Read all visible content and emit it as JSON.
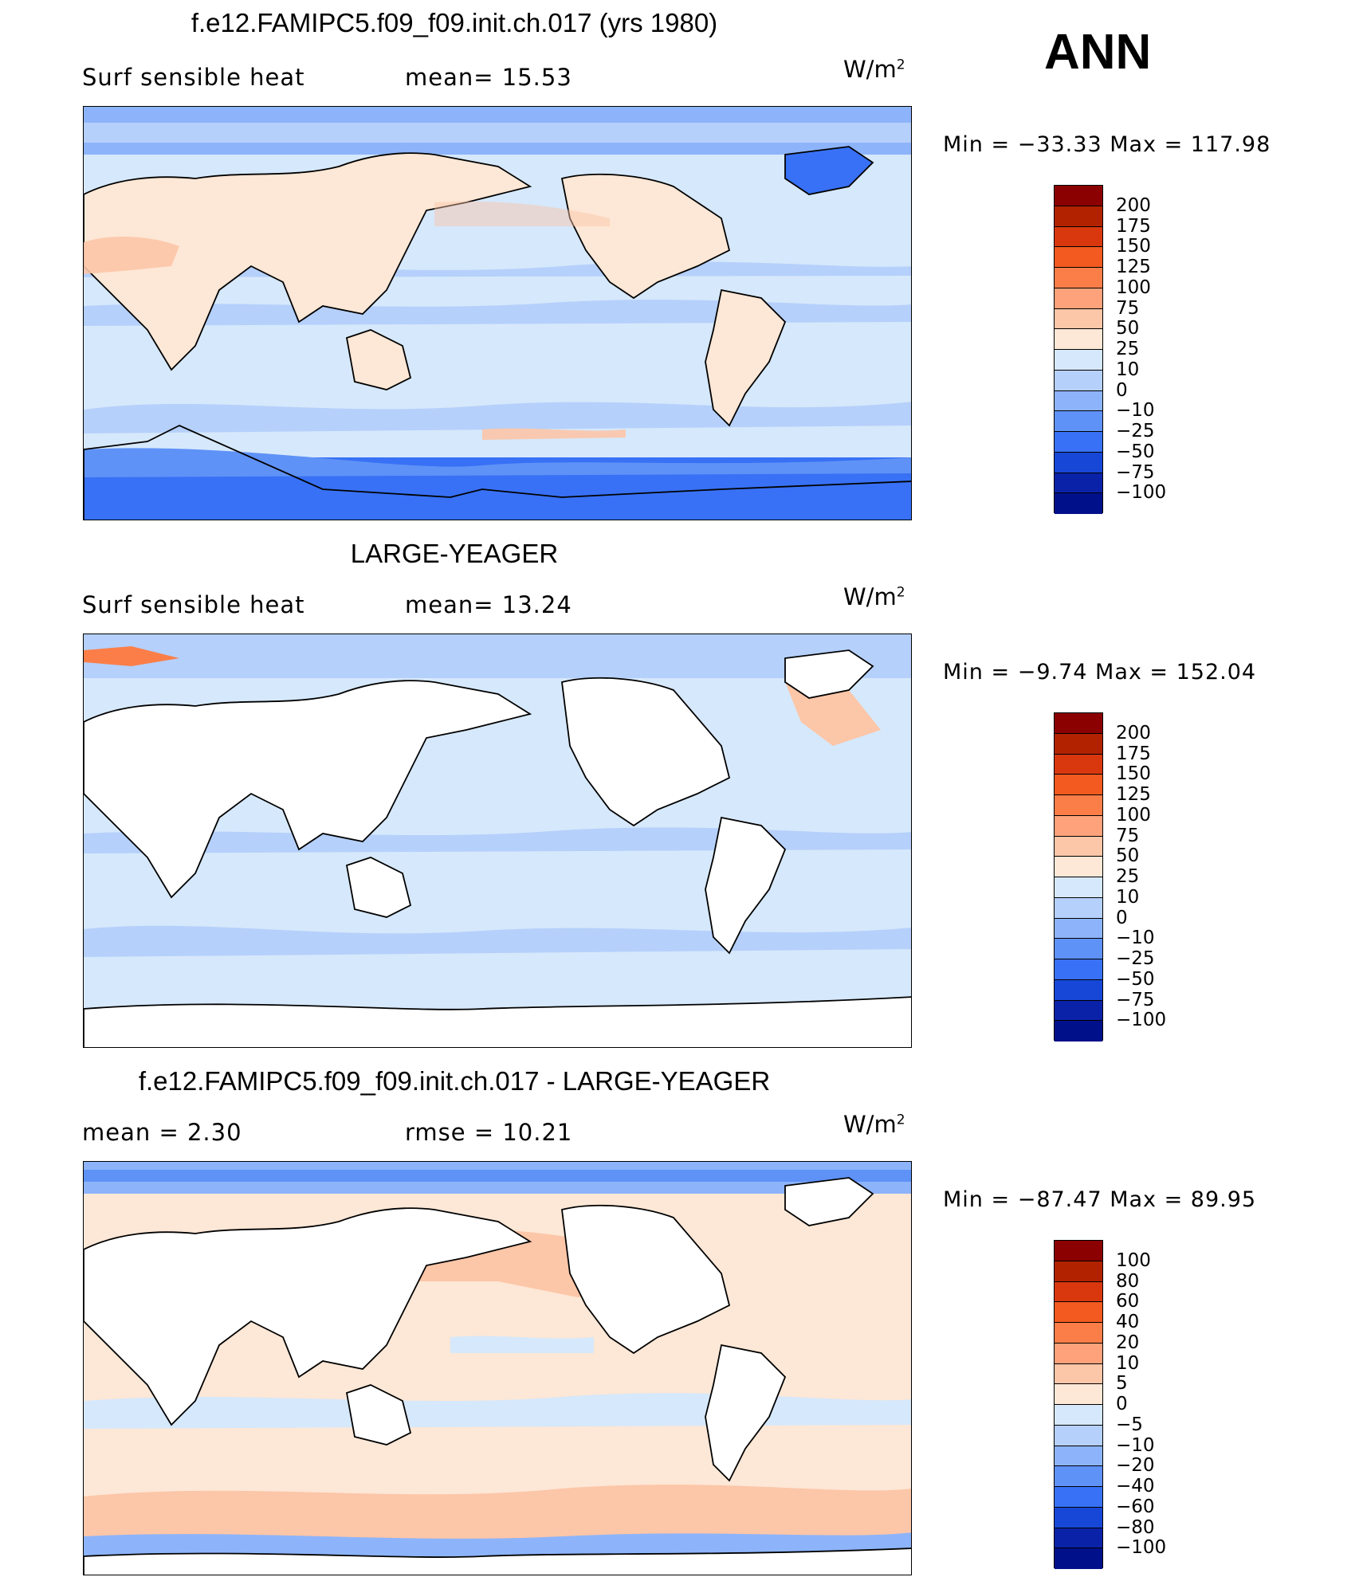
{
  "season": "ANN",
  "units_label": "W/m",
  "units_sup": "2",
  "panels": [
    {
      "title": "f.e12.FAMIPC5.f09_f09.init.ch.017 (yrs 1980)",
      "left_label": "Surf  sensible  heat",
      "right_label": "mean=   15.53",
      "minmax": "Min  =  −33.33  Max  =  117.98",
      "masked_land": false
    },
    {
      "title": "LARGE-YEAGER",
      "left_label": "Surf  sensible  heat",
      "right_label": "mean=   13.24",
      "minmax": "Min  =   −9.74  Max  =  152.04",
      "masked_land": true
    },
    {
      "title": "f.e12.FAMIPC5.f09_f09.init.ch.017 - LARGE-YEAGER",
      "left_label": "mean  =      2.30",
      "right_label": "rmse  =     10.21",
      "minmax": "Min  =  −87.47  Max  =    89.95",
      "masked_land": true
    }
  ],
  "colorbars": [
    {
      "labels": [
        "200",
        "175",
        "150",
        "125",
        "100",
        "75",
        "50",
        "25",
        "10",
        "0",
        "−10",
        "−25",
        "−50",
        "−75",
        "−100"
      ],
      "colors": [
        "#8b0000",
        "#b22200",
        "#d9380f",
        "#f25a1f",
        "#fb7e48",
        "#fda27a",
        "#fcc6a8",
        "#fde7d6",
        "#d6e8fb",
        "#b5d0fb",
        "#8db4fa",
        "#5f92f7",
        "#3871f5",
        "#1647d6",
        "#0a22a8",
        "#00108a"
      ]
    },
    {
      "labels": [
        "200",
        "175",
        "150",
        "125",
        "100",
        "75",
        "50",
        "25",
        "10",
        "0",
        "−10",
        "−25",
        "−50",
        "−75",
        "−100"
      ],
      "colors": [
        "#8b0000",
        "#b22200",
        "#d9380f",
        "#f25a1f",
        "#fb7e48",
        "#fda27a",
        "#fcc6a8",
        "#fde7d6",
        "#d6e8fb",
        "#b5d0fb",
        "#8db4fa",
        "#5f92f7",
        "#3871f5",
        "#1647d6",
        "#0a22a8",
        "#00108a"
      ]
    },
    {
      "labels": [
        "100",
        "80",
        "60",
        "40",
        "20",
        "10",
        "5",
        "0",
        "−5",
        "−10",
        "−20",
        "−40",
        "−60",
        "−80",
        "−100"
      ],
      "colors": [
        "#8b0000",
        "#b22200",
        "#d9380f",
        "#f25a1f",
        "#fb7e48",
        "#fda27a",
        "#fcc6a8",
        "#fde7d6",
        "#d6e8fb",
        "#b5d0fb",
        "#8db4fa",
        "#5f92f7",
        "#3871f5",
        "#1647d6",
        "#0a22a8",
        "#00108a"
      ]
    }
  ]
}
